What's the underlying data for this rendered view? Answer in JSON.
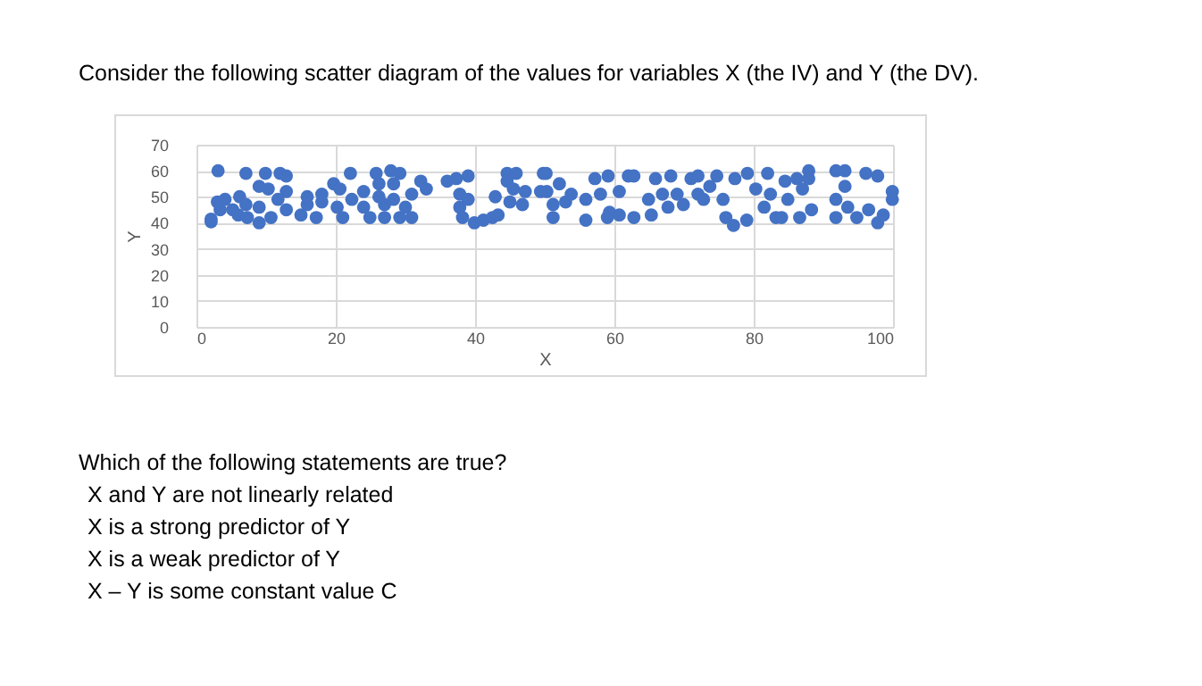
{
  "chart_data": {
    "type": "scatter",
    "title": "Consider the following scatter diagram of the values for variables X (the IV) and Y (the DV).",
    "xlabel": "X",
    "ylabel": "Y",
    "annotations": [
      "Which of the following statements are true?",
      "X and Y are not linearly related",
      "X is a strong predictor of Y",
      "X is a weak predictor of Y",
      "X – Y is some constant value C"
    ],
    "xlim": [
      0,
      100
    ],
    "ylim": [
      0,
      70
    ],
    "xticks": [
      0,
      20,
      40,
      60,
      80,
      100
    ],
    "yticks": [
      0,
      10,
      20,
      30,
      40,
      50,
      60,
      70
    ],
    "grid": true,
    "marker": "circle",
    "series": [
      {
        "color": "#4472c4",
        "x": [
          3.1,
          2.1,
          2.1,
          3,
          4.1,
          3.4,
          5.2,
          6,
          6.2,
          7.1,
          7.1,
          7.3,
          9,
          9,
          9.9,
          9,
          10.3,
          10.7,
          12,
          12.9,
          12.9,
          11.7,
          12.9,
          15,
          15.9,
          15.9,
          17.2,
          18,
          18,
          19.7,
          20.6,
          20.2,
          21,
          22.1,
          22.3,
          24,
          24,
          24.9,
          25.8,
          26.2,
          26.2,
          27,
          27,
          27.9,
          28.3,
          28.3,
          29.2,
          29.2,
          30,
          30.9,
          30.9,
          32.2,
          33,
          36,
          37.3,
          37.8,
          37.8,
          38.2,
          39,
          39,
          39.9,
          41.2,
          42.5,
          43.3,
          42.9,
          44.6,
          44.6,
          45.9,
          45.5,
          45,
          47.2,
          46.8,
          49.8,
          49.4,
          50.2,
          50.3,
          51.2,
          51.2,
          52.1,
          53,
          53.8,
          55.9,
          55.9,
          57.2,
          58,
          59,
          59.1,
          59.3,
          60.7,
          60.7,
          62,
          62.8,
          62.8,
          64.9,
          65.3,
          65.9,
          66.9,
          67.7,
          68.1,
          69,
          69.9,
          71,
          72,
          72,
          72.8,
          73.7,
          74.7,
          75.6,
          76,
          77.1,
          77.3,
          79,
          79.1,
          80.3,
          82,
          81.5,
          82.4,
          83.2,
          84,
          84.5,
          84.9,
          86.2,
          86.6,
          87,
          87.9,
          87.9,
          88.3,
          91.8,
          93.1,
          93.1,
          91.8,
          91.8,
          93.5,
          94.8,
          96.1,
          97.8,
          96.5,
          97.8,
          98.6,
          99.9,
          99.9
        ],
        "values": [
          60,
          40.4,
          41.4,
          48,
          49,
          45,
          45,
          43,
          50,
          59,
          47,
          42,
          40,
          46,
          59,
          54,
          53,
          42,
          59,
          58,
          52,
          49,
          45,
          43,
          50,
          47,
          42,
          51,
          48,
          55,
          53,
          46,
          42,
          59,
          49,
          52,
          46,
          42,
          59,
          55,
          50,
          42,
          47,
          60,
          55,
          49,
          59,
          42,
          46,
          51,
          42,
          56,
          53,
          56,
          57,
          51,
          46,
          42,
          58,
          49,
          40,
          41,
          42,
          43,
          50,
          59,
          56,
          59,
          53,
          48,
          52,
          47,
          59,
          52,
          59,
          52,
          42,
          47,
          55,
          48,
          51,
          41,
          49,
          57,
          51,
          42,
          58,
          44,
          52,
          43,
          58,
          58,
          42,
          49,
          43,
          57,
          51,
          46,
          58,
          51,
          47,
          57,
          58,
          51,
          49,
          54,
          58,
          49,
          42,
          39,
          57,
          41,
          59,
          53,
          59,
          46,
          51,
          42,
          42,
          56,
          49,
          57,
          42,
          53,
          60,
          57,
          45,
          60,
          60,
          54,
          49,
          42,
          46,
          42,
          59,
          58,
          45,
          40,
          43,
          52,
          49
        ]
      }
    ]
  }
}
